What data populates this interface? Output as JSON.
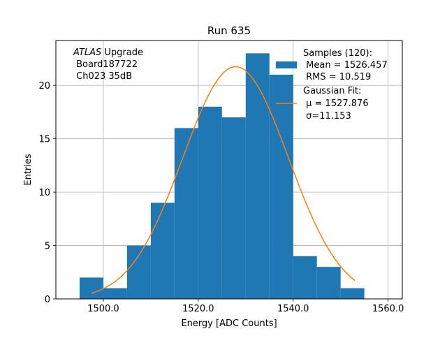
{
  "chart_data": {
    "type": "bar",
    "title": "Run 635",
    "xlabel": "Energy [ADC Counts]",
    "ylabel": "Entries",
    "xlim": [
      1490,
      1563
    ],
    "ylim": [
      0,
      24.2
    ],
    "grid": true,
    "x_ticks": [
      1500,
      1520,
      1540,
      1560
    ],
    "x_tick_labels": [
      "1500.0",
      "1520.0",
      "1540.0",
      "1560.0"
    ],
    "y_ticks": [
      0,
      5,
      10,
      15,
      20
    ],
    "y_tick_labels": [
      "0",
      "5",
      "10",
      "15",
      "20"
    ],
    "bar_color": "#1f77b4",
    "fit_color": "#ff7f0e",
    "bins": [
      {
        "x0": 1495,
        "x1": 1500,
        "count": 2
      },
      {
        "x0": 1500,
        "x1": 1505,
        "count": 1
      },
      {
        "x0": 1505,
        "x1": 1510,
        "count": 5
      },
      {
        "x0": 1510,
        "x1": 1515,
        "count": 9
      },
      {
        "x0": 1515,
        "x1": 1520,
        "count": 16
      },
      {
        "x0": 1520,
        "x1": 1525,
        "count": 18
      },
      {
        "x0": 1525,
        "x1": 1530,
        "count": 17
      },
      {
        "x0": 1530,
        "x1": 1535,
        "count": 23
      },
      {
        "x0": 1535,
        "x1": 1540,
        "count": 21
      },
      {
        "x0": 1540,
        "x1": 1545,
        "count": 4
      },
      {
        "x0": 1545,
        "x1": 1550,
        "count": 3
      },
      {
        "x0": 1550,
        "x1": 1555,
        "count": 1
      }
    ],
    "fit": {
      "mu": 1527.876,
      "sigma": 11.153,
      "amplitude": 21.75,
      "x_range": [
        1497.5,
        1553
      ]
    },
    "annotation": {
      "atlas": "ATLAS",
      "upgrade": " Upgrade",
      "board": " Board187722",
      "channel": " Ch023 35dB"
    },
    "legend": {
      "samples_title": "Samples (120):",
      "mean": " Mean = 1526.457",
      "rms": " RMS = 10.519",
      "fit_title": "Gaussian Fit:",
      "mu_text": " μ = 1527.876",
      "sigma_text": " σ=11.153"
    }
  }
}
